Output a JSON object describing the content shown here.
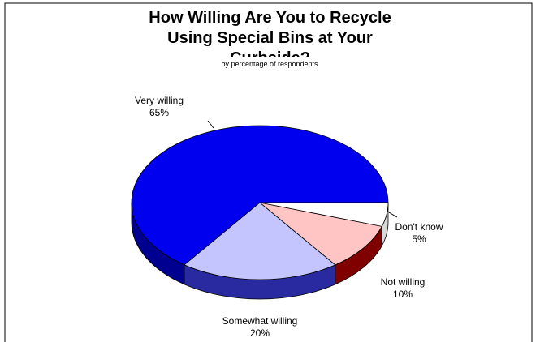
{
  "chart_data": {
    "type": "pie3d",
    "title": "How Willing Are You to Recycle Using Special Bins at Your Curbside?",
    "subtitle": "by percentage of respondents",
    "categories": [
      "Very willing",
      "Somewhat willing",
      "Not willing",
      "Don't know"
    ],
    "values": [
      65,
      20,
      10,
      5
    ],
    "value_labels": [
      "65%",
      "20%",
      "10%",
      "5%"
    ],
    "colors": [
      "#0000ee",
      "#c4c4ff",
      "#ffc4c4",
      "#ffffff"
    ],
    "side_colors": [
      "#000090",
      "#2a2aa0",
      "#800000",
      "#d8d8d8"
    ]
  }
}
